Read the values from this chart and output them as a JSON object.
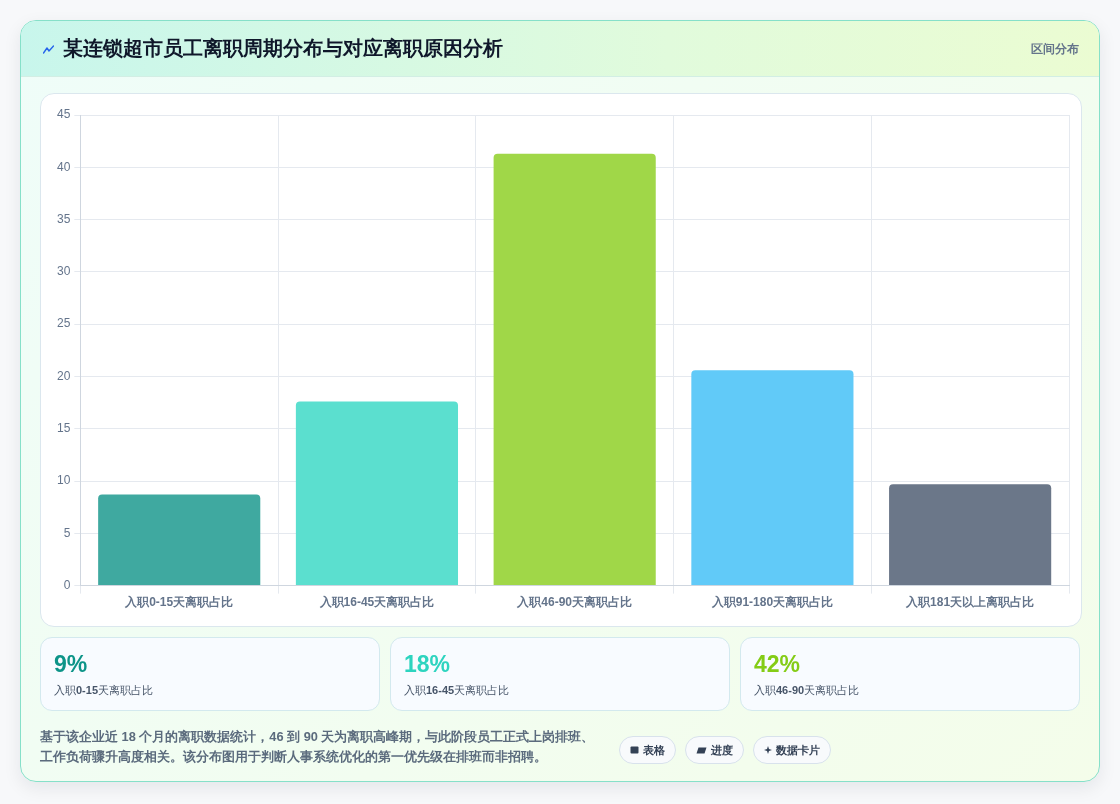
{
  "chart_data": [
    {
      "type": "bar",
      "title": "某连锁超市员工离职周期分布与对应离职原因分析",
      "subtitle": "区间分布",
      "categories": [
        "入职0-15天离职占比",
        "入职16-45天离职占比",
        "入职46-90天离职占比",
        "入职91-180天离职占比",
        "入职181天以上离职占比"
      ],
      "values": [
        8.7,
        17.6,
        41.3,
        20.6,
        9.7
      ],
      "colors": [
        "#3fa9a0",
        "#5bdfcf",
        "#a0d748",
        "#61caf8",
        "#6b7789"
      ],
      "ylim": [
        0,
        45
      ],
      "yticks": [
        0,
        5,
        10,
        15,
        20,
        25,
        30,
        35,
        40,
        45
      ],
      "grid": true,
      "annotations": [
        "基于该企业近 18 个月的离职数据统计，46 到 90 天为离职高峰期，与此阶段员工正式上岗排班、工作负荷骤升高度相关。该分布图用于判断人事系统优化的第一优先级在排班而非招聘。",
        "表格",
        "进度",
        "数据卡片"
      ]
    },
    {
      "type": "other",
      "categories": [
        "入职0-15天离职占比",
        "入职16-45天离职占比",
        "入职46-90天离职占比"
      ],
      "value_labels": [
        "9%",
        "18%",
        "42%"
      ]
    }
  ]
}
